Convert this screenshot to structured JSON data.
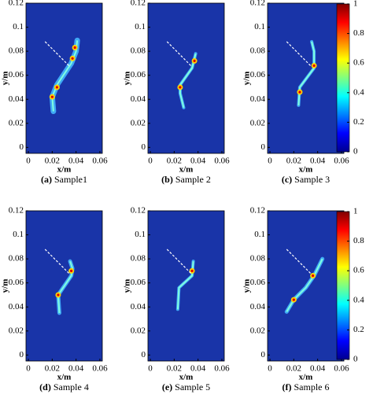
{
  "chart_data": [
    {
      "type": "heatmap",
      "caption_label": "(a)",
      "caption": "Sample1",
      "xlabel": "x/m",
      "ylabel": "y/m",
      "xlim": [
        -0.002,
        0.062
      ],
      "ylim": [
        -0.005,
        0.12
      ],
      "xticks": [
        0,
        0.02,
        0.04,
        0.06
      ],
      "yticks": [
        0,
        0.02,
        0.04,
        0.06,
        0.08,
        0.1,
        0.12
      ]
    },
    {
      "type": "heatmap",
      "caption_label": "(b)",
      "caption": "Sample 2",
      "xlabel": "x/m",
      "ylabel": "y/m",
      "xlim": [
        -0.002,
        0.062
      ],
      "ylim": [
        -0.005,
        0.12
      ],
      "xticks": [
        0,
        0.02,
        0.04,
        0.06
      ],
      "yticks": [
        0,
        0.02,
        0.04,
        0.06,
        0.08,
        0.1,
        0.12
      ]
    },
    {
      "type": "heatmap",
      "caption_label": "(c)",
      "caption": "Sample 3",
      "xlabel": "x/m",
      "ylabel": "y/m",
      "xlim": [
        -0.002,
        0.062
      ],
      "ylim": [
        -0.005,
        0.12
      ],
      "xticks": [
        0,
        0.02,
        0.04,
        0.06
      ],
      "yticks": [
        0,
        0.02,
        0.04,
        0.06,
        0.08,
        0.1,
        0.12
      ],
      "colorbar": {
        "lim": [
          0,
          1
        ],
        "ticks": [
          0,
          0.2,
          0.4,
          0.6,
          0.8,
          1
        ]
      }
    },
    {
      "type": "heatmap",
      "caption_label": "(d)",
      "caption": "Sample 4",
      "xlabel": "x/m",
      "ylabel": "y/m",
      "xlim": [
        -0.002,
        0.062
      ],
      "ylim": [
        -0.005,
        0.12
      ],
      "xticks": [
        0,
        0.02,
        0.04,
        0.06
      ],
      "yticks": [
        0,
        0.02,
        0.04,
        0.06,
        0.08,
        0.1,
        0.12
      ]
    },
    {
      "type": "heatmap",
      "caption_label": "(e)",
      "caption": "Sample 5",
      "xlabel": "x/m",
      "ylabel": "y/m",
      "xlim": [
        -0.002,
        0.062
      ],
      "ylim": [
        -0.005,
        0.12
      ],
      "xticks": [
        0,
        0.02,
        0.04,
        0.06
      ],
      "yticks": [
        0,
        0.02,
        0.04,
        0.06,
        0.08,
        0.1,
        0.12
      ]
    },
    {
      "type": "heatmap",
      "caption_label": "(f)",
      "caption": "Sample 6",
      "xlabel": "x/m",
      "ylabel": "y/m",
      "xlim": [
        -0.002,
        0.062
      ],
      "ylim": [
        -0.005,
        0.12
      ],
      "xticks": [
        0,
        0.02,
        0.04,
        0.06
      ],
      "yticks": [
        0,
        0.02,
        0.04,
        0.06,
        0.08,
        0.1,
        0.12
      ],
      "colorbar": {
        "lim": [
          0,
          1
        ],
        "ticks": [
          0,
          0.2,
          0.4,
          0.6,
          0.8,
          1
        ]
      }
    }
  ]
}
